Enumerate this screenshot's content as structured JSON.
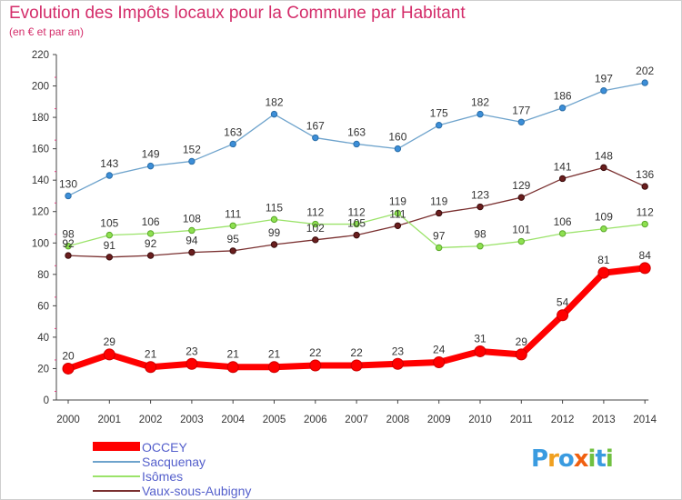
{
  "header": {
    "title": "Evolution des Impôts locaux pour la Commune par Habitant",
    "subtitle": "(en € et par an)"
  },
  "chart_data": {
    "type": "line",
    "title": "Evolution des Impôts locaux pour la Commune par Habitant",
    "subtitle": "(en € et par an)",
    "xlabel": "",
    "ylabel": "",
    "categories": [
      "2000",
      "2001",
      "2002",
      "2003",
      "2004",
      "2005",
      "2006",
      "2007",
      "2008",
      "2009",
      "2010",
      "2011",
      "2012",
      "2013",
      "2014"
    ],
    "ylim": [
      0,
      220
    ],
    "yticks": [
      0,
      20,
      40,
      60,
      80,
      100,
      120,
      140,
      160,
      180,
      200,
      220
    ],
    "grid": false,
    "legend_position": "bottom-left",
    "series": [
      {
        "name": "OCCEY",
        "color": "#ff0000",
        "values": [
          20,
          29,
          21,
          23,
          21,
          21,
          22,
          22,
          23,
          24,
          31,
          29,
          54,
          81,
          84
        ]
      },
      {
        "name": "Sacquenay",
        "color": "#6ea3cc",
        "values": [
          130,
          143,
          149,
          152,
          163,
          182,
          167,
          163,
          160,
          175,
          182,
          177,
          186,
          197,
          202
        ]
      },
      {
        "name": "Isômes",
        "color": "#9be36a",
        "values": [
          98,
          105,
          106,
          108,
          111,
          115,
          112,
          112,
          119,
          97,
          98,
          101,
          106,
          109,
          112
        ]
      },
      {
        "name": "Vaux-sous-Aubigny",
        "color": "#7a3030",
        "values": [
          92,
          91,
          92,
          94,
          95,
          99,
          102,
          105,
          111,
          119,
          123,
          129,
          141,
          148,
          136
        ]
      }
    ]
  },
  "branding": {
    "logo_letters": [
      "P",
      "r",
      "o",
      "x",
      "i",
      "t",
      "i"
    ],
    "logo_colors": [
      "#3a9be0",
      "#f0a020",
      "#3a9be0",
      "#f06010",
      "#70c040",
      "#3a9be0",
      "#70c040"
    ]
  }
}
